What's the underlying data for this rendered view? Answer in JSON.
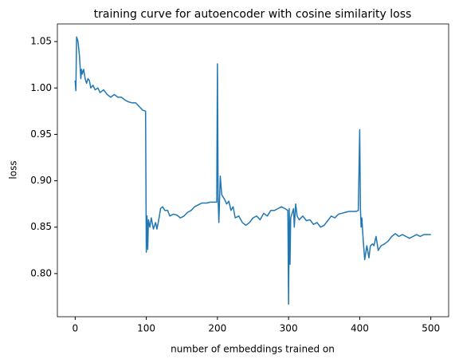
{
  "chart_data": {
    "type": "line",
    "title": "training curve for autoencoder with cosine similarity loss",
    "xlabel": "number of embeddings trained on",
    "ylabel": "loss",
    "color": "#1f77b4",
    "x": [
      0,
      1,
      2,
      4,
      6,
      8,
      9,
      10,
      12,
      14,
      16,
      18,
      20,
      22,
      25,
      28,
      32,
      35,
      40,
      45,
      50,
      55,
      60,
      65,
      70,
      75,
      80,
      85,
      90,
      95,
      99,
      100,
      101,
      102,
      103,
      105,
      107,
      110,
      113,
      115,
      118,
      120,
      123,
      126,
      130,
      133,
      138,
      143,
      148,
      153,
      158,
      163,
      168,
      173,
      178,
      185,
      190,
      195,
      199,
      200,
      201,
      202,
      203,
      204,
      206,
      210,
      213,
      216,
      219,
      222,
      225,
      230,
      235,
      240,
      245,
      250,
      255,
      260,
      265,
      270,
      275,
      280,
      285,
      290,
      295,
      299,
      300,
      301,
      302,
      303,
      305,
      307,
      308,
      310,
      312,
      315,
      320,
      325,
      330,
      335,
      340,
      345,
      350,
      355,
      360,
      365,
      370,
      375,
      380,
      385,
      390,
      395,
      398,
      400,
      401,
      402,
      403,
      405,
      407,
      410,
      413,
      415,
      418,
      420,
      423,
      426,
      430,
      435,
      440,
      445,
      450,
      455,
      460,
      465,
      470,
      475,
      480,
      485,
      490,
      495,
      500
    ],
    "values": [
      1.008,
      0.997,
      1.055,
      1.05,
      1.035,
      1.01,
      1.02,
      1.015,
      1.02,
      1.01,
      1.005,
      1.01,
      1.008,
      1.0,
      1.003,
      0.998,
      1.0,
      0.995,
      0.998,
      0.993,
      0.99,
      0.993,
      0.99,
      0.99,
      0.987,
      0.985,
      0.984,
      0.984,
      0.98,
      0.976,
      0.975,
      0.823,
      0.862,
      0.826,
      0.858,
      0.85,
      0.86,
      0.848,
      0.855,
      0.848,
      0.86,
      0.87,
      0.872,
      0.868,
      0.868,
      0.862,
      0.864,
      0.863,
      0.86,
      0.862,
      0.866,
      0.868,
      0.872,
      0.874,
      0.876,
      0.876,
      0.877,
      0.877,
      0.877,
      1.026,
      0.88,
      0.855,
      0.88,
      0.905,
      0.885,
      0.88,
      0.875,
      0.878,
      0.868,
      0.872,
      0.86,
      0.862,
      0.855,
      0.852,
      0.855,
      0.86,
      0.862,
      0.858,
      0.865,
      0.862,
      0.868,
      0.868,
      0.87,
      0.872,
      0.87,
      0.868,
      0.767,
      0.87,
      0.81,
      0.86,
      0.865,
      0.87,
      0.85,
      0.875,
      0.862,
      0.858,
      0.862,
      0.857,
      0.858,
      0.853,
      0.855,
      0.85,
      0.852,
      0.857,
      0.862,
      0.86,
      0.864,
      0.865,
      0.866,
      0.867,
      0.867,
      0.867,
      0.868,
      0.955,
      0.87,
      0.85,
      0.86,
      0.835,
      0.815,
      0.83,
      0.817,
      0.83,
      0.832,
      0.83,
      0.84,
      0.825,
      0.83,
      0.832,
      0.835,
      0.84,
      0.843,
      0.84,
      0.842,
      0.84,
      0.838,
      0.84,
      0.842,
      0.84,
      0.842,
      0.842,
      0.842
    ],
    "xlim": [
      -25,
      525
    ],
    "xticks": [
      0,
      100,
      200,
      300,
      400,
      500
    ],
    "ylim": [
      0.7535,
      1.069
    ],
    "yticks": [
      {
        "value": 0.8,
        "label": "0.80"
      },
      0.85,
      {
        "value": 0.9,
        "label": "0.90"
      },
      0.95,
      {
        "value": 1,
        "label": "1.00"
      },
      1.05
    ]
  }
}
